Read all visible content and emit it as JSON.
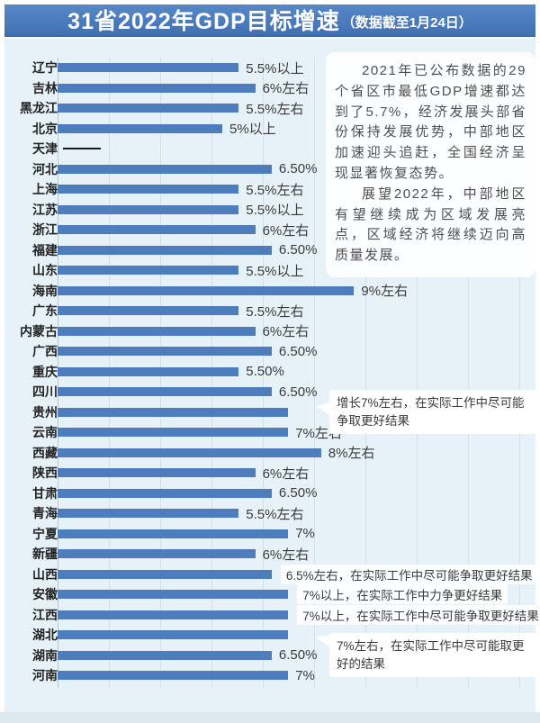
{
  "title": {
    "main": "31省2022年GDP目标增速",
    "sub": "（数据截至1月24日）"
  },
  "info_box": {
    "paragraph1": "2021年已公布数据的29个省区市最低GDP增速都达到了5.7%，经济发展头部省份保持发展优势，中部地区加速迎头追赶，全国经济呈现显著恢复态势。",
    "paragraph2": "展望2022年，中部地区有望继续成为区域发展亮点，区域经济将继续迈向高质量发展。"
  },
  "callouts": [
    {
      "target_province": "贵州",
      "text": "增长7%左右，在实际工作中尽可能争取更好结果"
    },
    {
      "target_province": "湖北",
      "text": "7%左右，在实际工作中尽可能取更好的结果"
    }
  ],
  "colors": {
    "header_bg": "#4a7cbd",
    "bar": "#4d7dbd",
    "chart_bg": "#e7f2f8",
    "annotation_bg": "#ffffff",
    "text": "#3a3a3a"
  },
  "chart_data": {
    "type": "bar",
    "orientation": "horizontal",
    "title": "31省2022年GDP目标增速（数据截至1月24日）",
    "xlabel": "",
    "ylabel": "",
    "unit": "%",
    "xlim": [
      0,
      9.5
    ],
    "grid": true,
    "categories": [
      "辽宁",
      "吉林",
      "黑龙江",
      "北京",
      "天津",
      "河北",
      "上海",
      "江苏",
      "浙江",
      "福建",
      "山东",
      "海南",
      "广东",
      "内蒙古",
      "广西",
      "重庆",
      "四川",
      "贵州",
      "云南",
      "西藏",
      "陕西",
      "甘肃",
      "青海",
      "宁夏",
      "新疆",
      "山西",
      "安徽",
      "江西",
      "湖北",
      "湖南",
      "河南"
    ],
    "values": [
      5.5,
      6,
      5.5,
      5,
      null,
      6.5,
      5.5,
      5.5,
      6,
      6.5,
      5.5,
      9,
      5.5,
      6,
      6.5,
      5.5,
      6.5,
      7,
      7,
      8,
      6,
      6.5,
      5.5,
      7,
      6,
      6.5,
      7,
      7,
      7,
      6.5,
      7
    ],
    "value_labels": [
      "5.5%以上",
      "6%左右",
      "5.5%左右",
      "5%以上",
      "",
      "6.50%",
      "5.5%左右",
      "5.5%以上",
      "6%左右",
      "6.50%",
      "5.5%以上",
      "9%左右",
      "5.5%左右",
      "6%左右",
      "6.50%",
      "5.50%",
      "6.50%",
      "",
      "7%左右",
      "8%左右",
      "6%左右",
      "6.50%",
      "5.5%左右",
      "7%",
      "6%左右",
      "6.5%左右，在实际工作中尽可能争取更好结果",
      "7%以上，在实际工作中力争更好结果",
      "7%以上，在实际工作中尽可能争取更好结果",
      "",
      "6.50%",
      "7%"
    ],
    "label_boxed": [
      false,
      false,
      false,
      false,
      false,
      false,
      false,
      false,
      false,
      false,
      false,
      false,
      false,
      false,
      false,
      false,
      false,
      false,
      false,
      false,
      false,
      false,
      false,
      false,
      false,
      true,
      true,
      true,
      false,
      false,
      false
    ]
  }
}
